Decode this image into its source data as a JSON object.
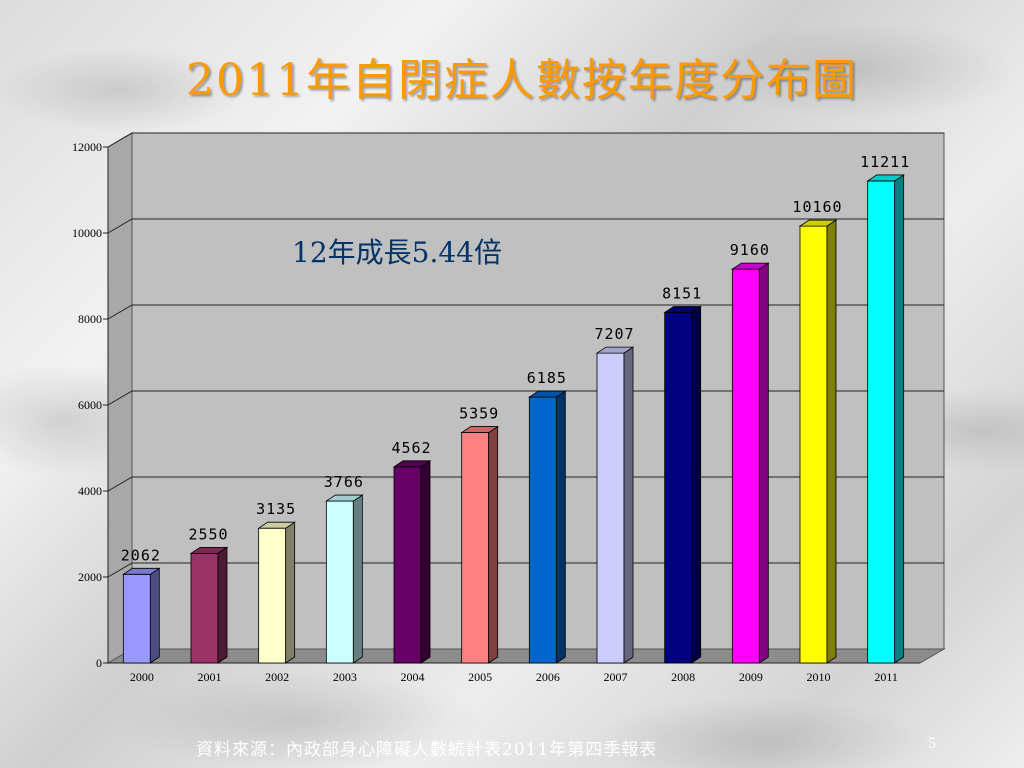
{
  "slide": {
    "title": "2011年自閉症人數按年度分布圖",
    "source": "資料來源：內政部身心障礙人數統計表2011年第四季報表",
    "page_number": "5"
  },
  "chart_data": {
    "type": "bar",
    "title": "",
    "xlabel": "",
    "ylabel": "",
    "categories": [
      "2000",
      "2001",
      "2002",
      "2003",
      "2004",
      "2005",
      "2006",
      "2007",
      "2008",
      "2009",
      "2010",
      "2011"
    ],
    "values": [
      2062,
      2550,
      3135,
      3766,
      4562,
      5359,
      6185,
      7207,
      8151,
      9160,
      10160,
      11211
    ],
    "data_labels": [
      "2062",
      "2550",
      "3135",
      "3766",
      "4562",
      "5359",
      "6185",
      "7207",
      "8151",
      "9160",
      "10160",
      "11211"
    ],
    "ylim": [
      0,
      12000
    ],
    "yticks": [
      "0",
      "2000",
      "4000",
      "6000",
      "8000",
      "10000",
      "12000"
    ],
    "grid": true,
    "style_3d": true,
    "bar_colors": [
      "#9999ff",
      "#993366",
      "#ffffcc",
      "#ccffff",
      "#660066",
      "#ff8080",
      "#0066cc",
      "#ccccff",
      "#000080",
      "#ff00ff",
      "#ffff00",
      "#00ffff"
    ],
    "annotation": "12年成長5.44倍",
    "annotation_color": "#003366"
  }
}
